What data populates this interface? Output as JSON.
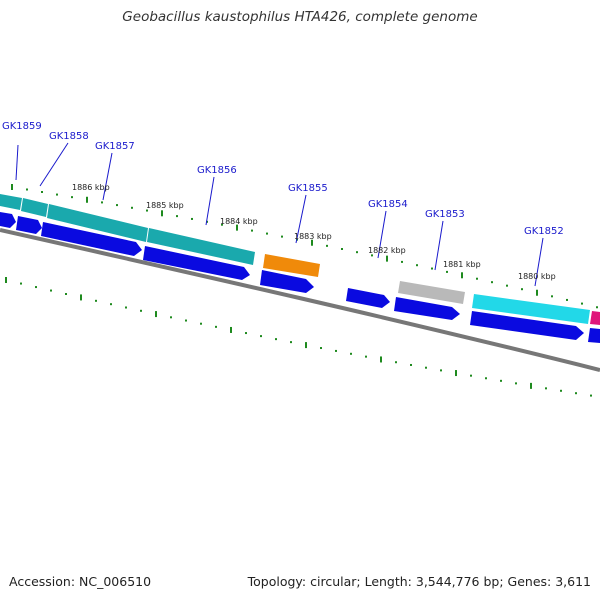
{
  "title": "Geobacillus kaustophilus HTA426, complete genome",
  "footer": {
    "accession": "Accession: NC_006510",
    "summary": "Topology: circular; Length: 3,544,776 bp; Genes: 3,611"
  },
  "colors": {
    "backbone": "#777777",
    "tick": "#1e8a1e",
    "label": "#1a1acc",
    "cds_strand": "#0a0ae0",
    "teal": "#1aa9ad",
    "cyan": "#22d8e8",
    "orange": "#f08a0a",
    "gray": "#b9b9b9",
    "magenta": "#e0167a"
  },
  "gene_labels": [
    "GK1859",
    "GK1858",
    "GK1857",
    "GK1856",
    "GK1855",
    "GK1854",
    "GK1853",
    "GK1852"
  ],
  "tick_labels": [
    "1886 kbp",
    "1885 kbp",
    "1884 kbp",
    "1883 kbp",
    "1882 kbp",
    "1881 kbp",
    "1880 kbp"
  ]
}
